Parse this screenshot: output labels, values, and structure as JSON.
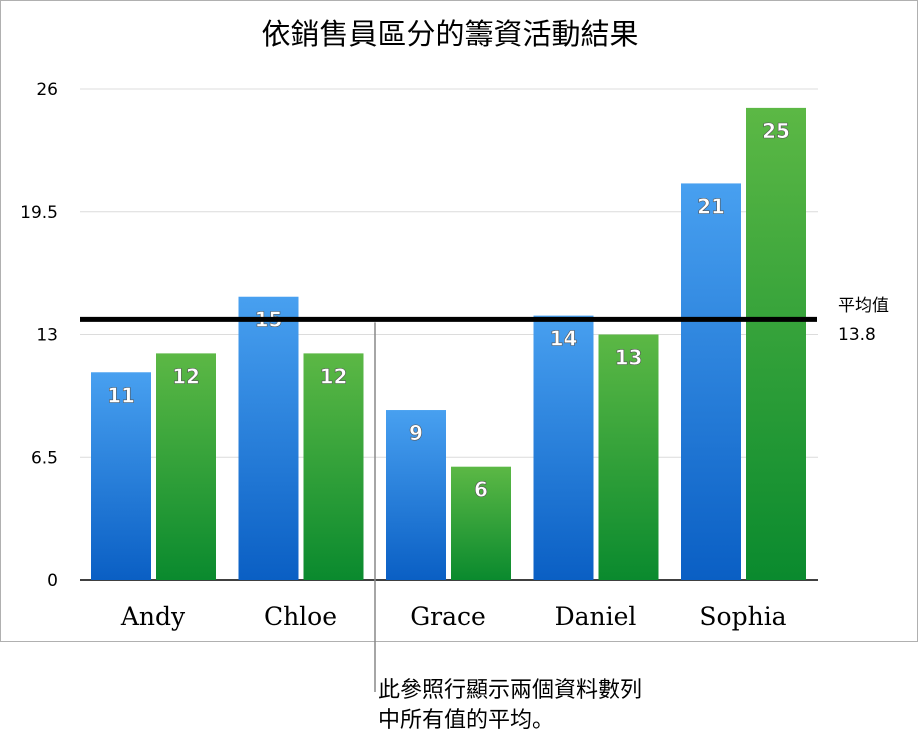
{
  "chart_data": {
    "type": "bar",
    "title": "依銷售員區分的籌資活動結果",
    "categories": [
      "Andy",
      "Chloe",
      "Grace",
      "Daniel",
      "Sophia"
    ],
    "series": [
      {
        "values": [
          11,
          15,
          9,
          14,
          21
        ],
        "color": "#2f8ae6"
      },
      {
        "values": [
          12,
          12,
          6,
          13,
          25
        ],
        "color": "#3aa63a"
      }
    ],
    "ylim": [
      0,
      26
    ],
    "yticks": [
      "0",
      "6.5",
      "13",
      "19.5",
      "26"
    ],
    "grid": true,
    "reference_line": {
      "label": "平均值",
      "value": 13.8,
      "value_label": "13.8"
    },
    "data_labels": true
  },
  "annotation": {
    "line1": "此參照行顯示兩個資料數列",
    "line2": "中所有值的平均。"
  }
}
